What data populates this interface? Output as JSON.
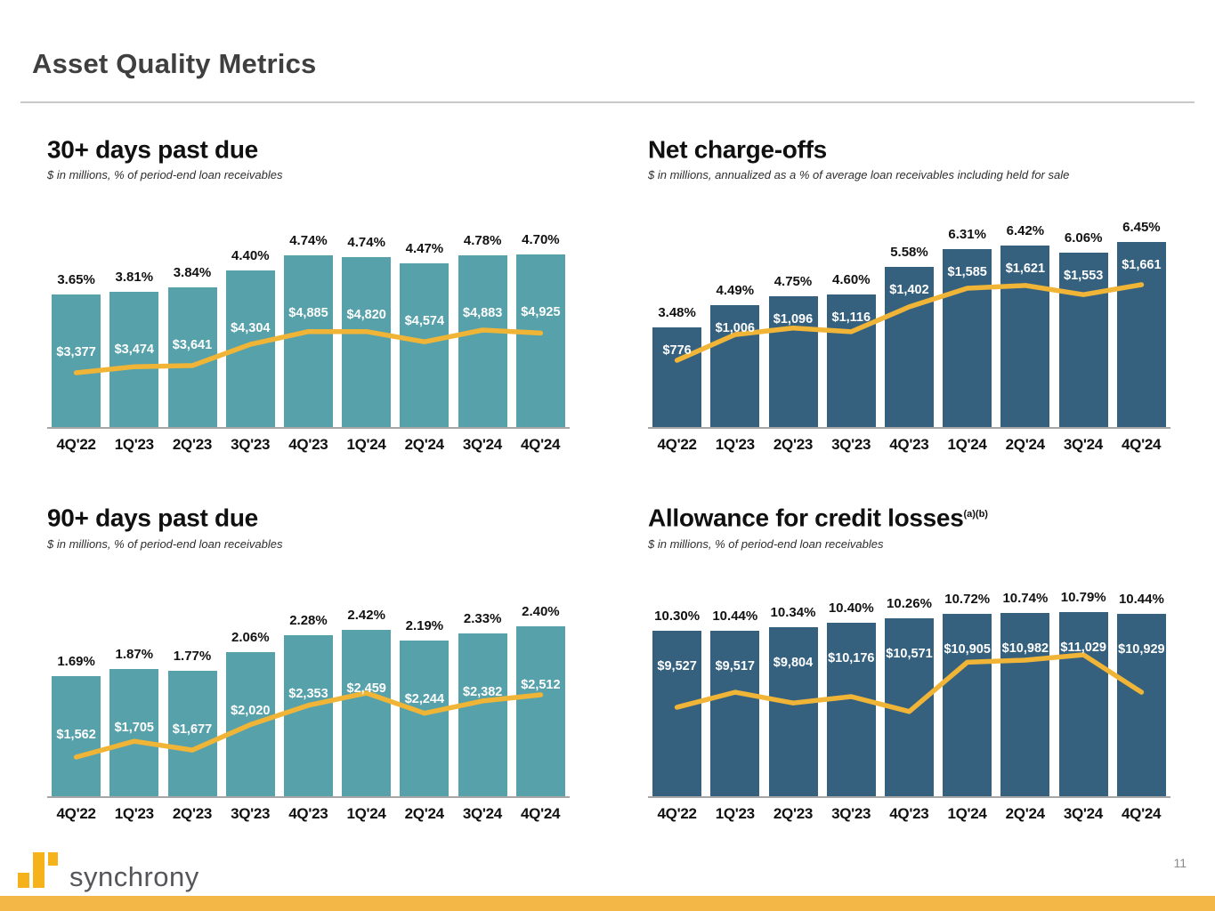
{
  "page": {
    "title": "Asset Quality Metrics",
    "page_number": "11",
    "brand": "synchrony"
  },
  "colors": {
    "teal_bar": "#57A1AA",
    "navy_bar": "#35617F",
    "gold_line": "#F0B437",
    "gold_strip": "#F2B746",
    "logo_gold": "#F6B21B"
  },
  "chart_data": [
    {
      "type": "bar+line",
      "title": "30+ days past due",
      "title_sup": "",
      "subtitle": "$ in millions, % of period-end loan receivables",
      "categories": [
        "4Q'22",
        "1Q'23",
        "2Q'23",
        "3Q'23",
        "4Q'23",
        "1Q'24",
        "2Q'24",
        "3Q'24",
        "4Q'24"
      ],
      "bar_color": "#57A1AA",
      "line_color": "#F0B437",
      "series": [
        {
          "name": "30+ days past due ($ millions)",
          "type": "bar",
          "values": [
            3377,
            3474,
            3641,
            4304,
            4885,
            4820,
            4574,
            4883,
            4925
          ],
          "labels": [
            "$3,377",
            "$3,474",
            "$3,641",
            "$4,304",
            "$4,885",
            "$4,820",
            "$4,574",
            "$4,883",
            "$4,925"
          ]
        },
        {
          "name": "30+ days past due (% of period-end loan receivables)",
          "type": "line",
          "values": [
            3.65,
            3.81,
            3.84,
            4.4,
            4.74,
            4.74,
            4.47,
            4.78,
            4.7
          ],
          "labels": [
            "3.65%",
            "3.81%",
            "3.84%",
            "4.40%",
            "4.74%",
            "4.74%",
            "4.47%",
            "4.78%",
            "4.70%"
          ]
        }
      ]
    },
    {
      "type": "bar+line",
      "title": "Net charge-offs",
      "title_sup": "",
      "subtitle": "$ in millions, annualized as a % of average loan receivables including held for sale",
      "categories": [
        "4Q'22",
        "1Q'23",
        "2Q'23",
        "3Q'23",
        "4Q'23",
        "1Q'24",
        "2Q'24",
        "3Q'24",
        "4Q'24"
      ],
      "bar_color": "#35617F",
      "line_color": "#F0B437",
      "series": [
        {
          "name": "Net charge-offs ($ millions)",
          "type": "bar",
          "values": [
            776,
            1006,
            1096,
            1116,
            1402,
            1585,
            1621,
            1553,
            1661
          ],
          "labels": [
            "$776",
            "$1,006",
            "$1,096",
            "$1,116",
            "$1,402",
            "$1,585",
            "$1,621",
            "$1,553",
            "$1,661"
          ]
        },
        {
          "name": "Net charge-off rate (%)",
          "type": "line",
          "values": [
            3.48,
            4.49,
            4.75,
            4.6,
            5.58,
            6.31,
            6.42,
            6.06,
            6.45
          ],
          "labels": [
            "3.48%",
            "4.49%",
            "4.75%",
            "4.60%",
            "5.58%",
            "6.31%",
            "6.42%",
            "6.06%",
            "6.45%"
          ]
        }
      ]
    },
    {
      "type": "bar+line",
      "title": "90+ days past due",
      "title_sup": "",
      "subtitle": "$ in millions, % of period-end loan receivables",
      "categories": [
        "4Q'22",
        "1Q'23",
        "2Q'23",
        "3Q'23",
        "4Q'23",
        "1Q'24",
        "2Q'24",
        "3Q'24",
        "4Q'24"
      ],
      "bar_color": "#57A1AA",
      "line_color": "#F0B437",
      "series": [
        {
          "name": "90+ days past due ($ millions)",
          "type": "bar",
          "values": [
            1562,
            1705,
            1677,
            2020,
            2353,
            2459,
            2244,
            2382,
            2512
          ],
          "labels": [
            "$1,562",
            "$1,705",
            "$1,677",
            "$2,020",
            "$2,353",
            "$2,459",
            "$2,244",
            "$2,382",
            "$2,512"
          ]
        },
        {
          "name": "90+ days past due (% of period-end loan receivables)",
          "type": "line",
          "values": [
            1.69,
            1.87,
            1.77,
            2.06,
            2.28,
            2.42,
            2.19,
            2.33,
            2.4
          ],
          "labels": [
            "1.69%",
            "1.87%",
            "1.77%",
            "2.06%",
            "2.28%",
            "2.42%",
            "2.19%",
            "2.33%",
            "2.40%"
          ]
        }
      ]
    },
    {
      "type": "bar+line",
      "title": "Allowance for credit losses",
      "title_sup": "(a)(b)",
      "subtitle": "$ in millions, % of period-end loan receivables",
      "categories": [
        "4Q'22",
        "1Q'23",
        "2Q'23",
        "3Q'23",
        "4Q'23",
        "1Q'24",
        "2Q'24",
        "3Q'24",
        "4Q'24"
      ],
      "bar_color": "#35617F",
      "line_color": "#F0B437",
      "series": [
        {
          "name": "Allowance for credit losses ($ millions)",
          "type": "bar",
          "values": [
            9527,
            9517,
            9804,
            10176,
            10571,
            10905,
            10982,
            11029,
            10929
          ],
          "labels": [
            "$9,527",
            "$9,517",
            "$9,804",
            "$10,176",
            "$10,571",
            "$10,905",
            "$10,982",
            "$11,029",
            "$10,929"
          ]
        },
        {
          "name": "Allowance coverage ratio (%)",
          "type": "line",
          "values": [
            10.3,
            10.44,
            10.34,
            10.4,
            10.26,
            10.72,
            10.74,
            10.79,
            10.44
          ],
          "labels": [
            "10.30%",
            "10.44%",
            "10.34%",
            "10.40%",
            "10.26%",
            "10.72%",
            "10.74%",
            "10.79%",
            "10.44%"
          ]
        }
      ]
    }
  ]
}
